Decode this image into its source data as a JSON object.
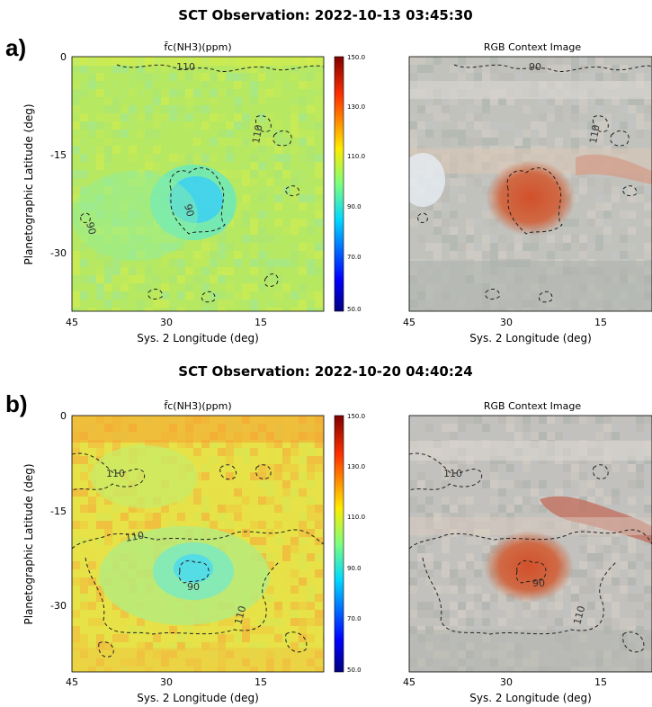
{
  "colors": {
    "contour": "#222222",
    "colormap": [
      "#00007f",
      "#0000ff",
      "#007fff",
      "#00ffff",
      "#7fff7f",
      "#ffff00",
      "#ff7f00",
      "#ff0000",
      "#7f0000"
    ]
  },
  "chart_data": [
    {
      "panel_label": "a)",
      "title": "SCT Observation: 2022-10-13 03:45:30",
      "left_title": "f̄c(NH3)(ppm)",
      "right_title": "RGB Context Image",
      "xlabel": "Sys. 2 Longitude (deg)",
      "ylabel": "Planetographic Latitude (deg)",
      "xticks": [
        "45",
        "30",
        "15"
      ],
      "yticks": [
        "0",
        "-15",
        "-30"
      ],
      "colorbar_ticks": [
        "150.0",
        "130.0",
        "110.0",
        "90.0",
        "70.0",
        "50.0"
      ],
      "contour_labels": [
        "110",
        "110",
        "90",
        "90",
        "110",
        "90"
      ],
      "type": "heatmap",
      "xlim": [
        45,
        5
      ],
      "ylim": [
        -40,
        0
      ],
      "clim": [
        50,
        150
      ],
      "contour_levels": [
        90,
        110
      ]
    },
    {
      "panel_label": "b)",
      "title": "SCT Observation: 2022-10-20 04:40:24",
      "left_title": "f̄c(NH3)(ppm)",
      "right_title": "RGB Context Image",
      "xlabel": "Sys. 2 Longitude (deg)",
      "ylabel": "Planetographic Latitude (deg)",
      "xticks": [
        "45",
        "30",
        "15"
      ],
      "yticks": [
        "0",
        "-15",
        "-30"
      ],
      "colorbar_ticks": [
        "150.0",
        "130.0",
        "110.0",
        "90.0",
        "70.0",
        "50.0"
      ],
      "contour_labels": [
        "110",
        "110",
        "90",
        "110",
        "110",
        "90",
        "110"
      ],
      "type": "heatmap",
      "xlim": [
        45,
        5
      ],
      "ylim": [
        -40,
        0
      ],
      "clim": [
        50,
        150
      ],
      "contour_levels": [
        90,
        110
      ]
    }
  ]
}
